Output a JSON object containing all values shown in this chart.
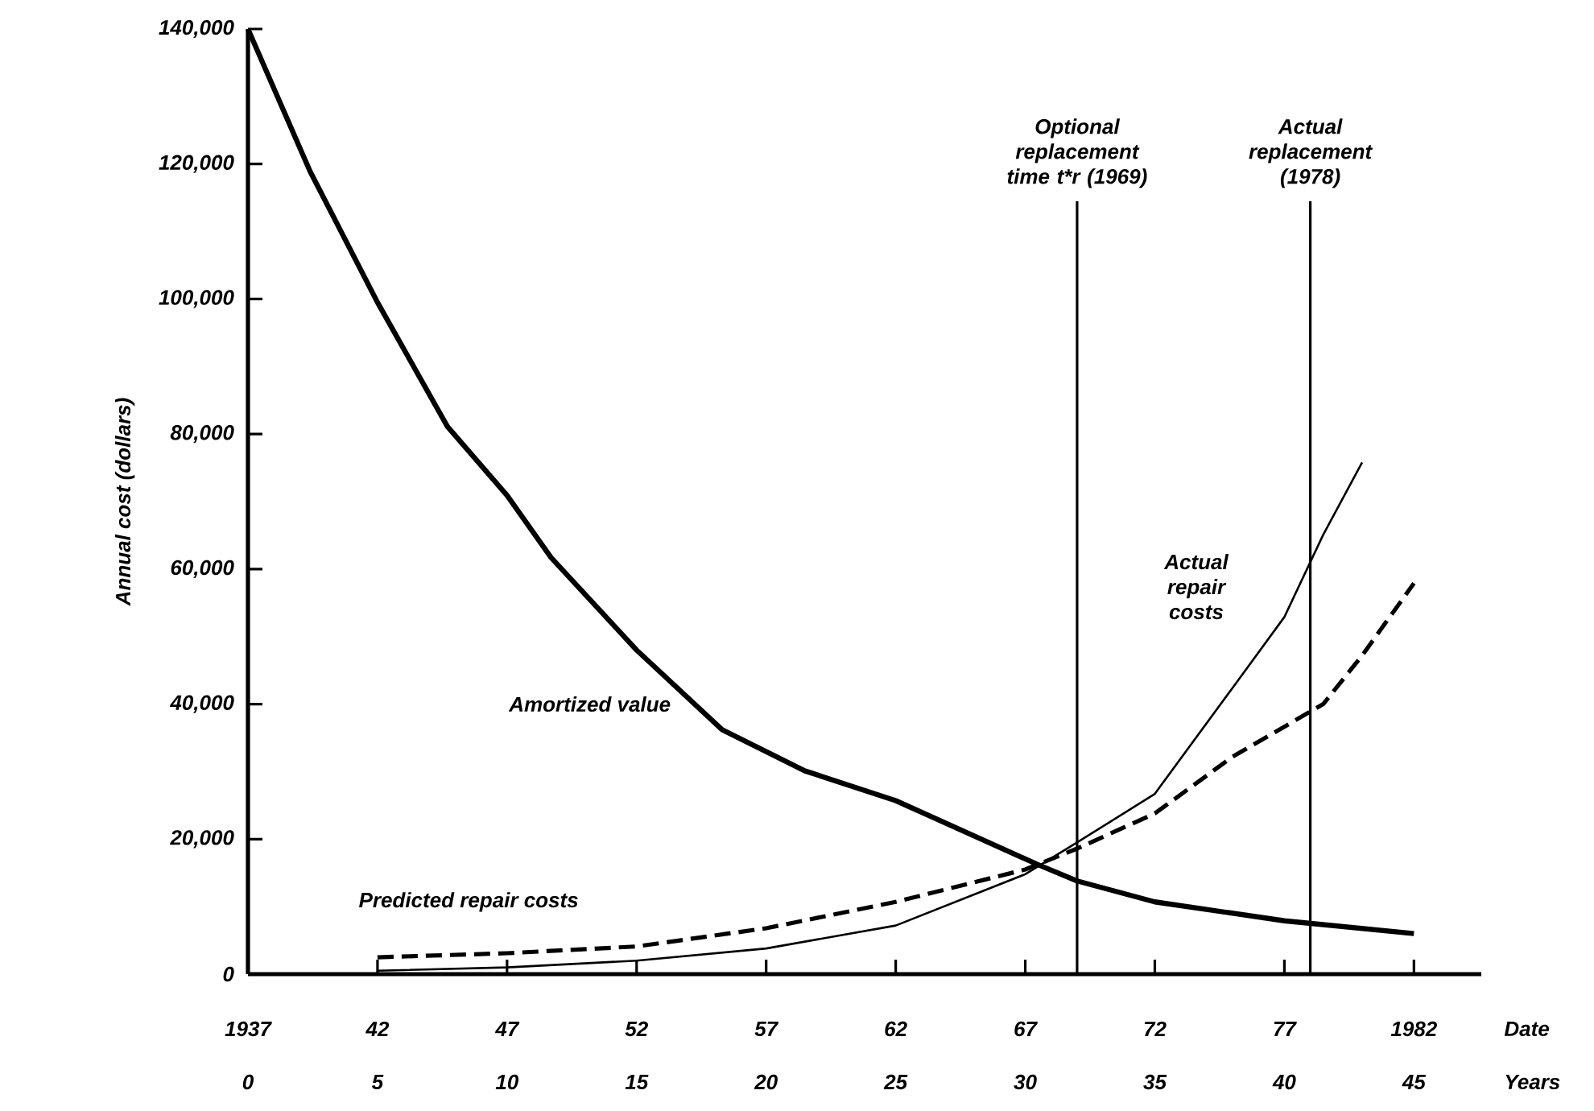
{
  "chart_data": {
    "type": "line",
    "xlabel": "Date",
    "x2label": "Years",
    "ylabel": "Annual cost (dollars)",
    "xlim": [
      1937,
      1984.6
    ],
    "x2lim": [
      0,
      47.6
    ],
    "ylim": [
      0,
      140000
    ],
    "xticks": [
      1937,
      {
        "value": 1942,
        "label": "42"
      },
      {
        "value": 1947,
        "label": "47"
      },
      {
        "value": 1952,
        "label": "52"
      },
      {
        "value": 1957,
        "label": "57"
      },
      {
        "value": 1962,
        "label": "62"
      },
      {
        "value": 1967,
        "label": "67"
      },
      {
        "value": 1972,
        "label": "72"
      },
      {
        "value": 1977,
        "label": "77"
      },
      1982
    ],
    "x2ticks": [
      0,
      5,
      10,
      15,
      20,
      25,
      30,
      35,
      40,
      45
    ],
    "yticks": [
      0,
      {
        "value": 20000,
        "label": "20,000"
      },
      {
        "value": 40000,
        "label": "40,000"
      },
      {
        "value": 60000,
        "label": "60,000"
      },
      {
        "value": 80000,
        "label": "80,000"
      },
      {
        "value": 100000,
        "label": "100,000"
      },
      {
        "value": 120000,
        "label": "120,000"
      },
      {
        "value": 140000,
        "label": "140,000"
      }
    ],
    "grid": false,
    "legend": false,
    "marker": "none",
    "series": [
      {
        "name": "Amortized value",
        "color": "#000000",
        "line_style": "solid",
        "x": [
          1937,
          1939.4,
          1942,
          1944.7,
          1947,
          1948.7,
          1952,
          1955.3,
          1958.5,
          1962,
          1967.5,
          1969,
          1972,
          1977,
          1982
        ],
        "values": [
          140000,
          118900,
          99500,
          81100,
          70900,
          61700,
          48000,
          36200,
          30100,
          25700,
          16200,
          13800,
          10700,
          7900,
          6000
        ]
      },
      {
        "name": "Predicted repair costs",
        "color": "#000000",
        "line_style": "dashed",
        "x": [
          1942,
          1947,
          1952,
          1957,
          1962,
          1967,
          1969,
          1972,
          1975,
          1978.5,
          1980,
          1982
        ],
        "values": [
          2500,
          3100,
          4100,
          6800,
          10700,
          15500,
          18600,
          23800,
          32200,
          40000,
          47200,
          57900
        ]
      },
      {
        "name": "Actual repair costs",
        "color": "#000000",
        "line_style": "solid",
        "x": [
          1942,
          1947,
          1952,
          1957,
          1962,
          1967,
          1969,
          1972,
          1975,
          1977,
          1978.5,
          1980
        ],
        "values": [
          500,
          1000,
          2000,
          3800,
          7200,
          14800,
          19500,
          26700,
          42400,
          52900,
          65100,
          75800
        ]
      }
    ],
    "ref_lines": [
      {
        "axis": "x",
        "value": 1969,
        "label": "Optional replacement time t*r (1969)",
        "color": "#000000"
      },
      {
        "axis": "x",
        "value": 1978,
        "label": "Actual replacement (1978)",
        "color": "#000000"
      }
    ]
  }
}
